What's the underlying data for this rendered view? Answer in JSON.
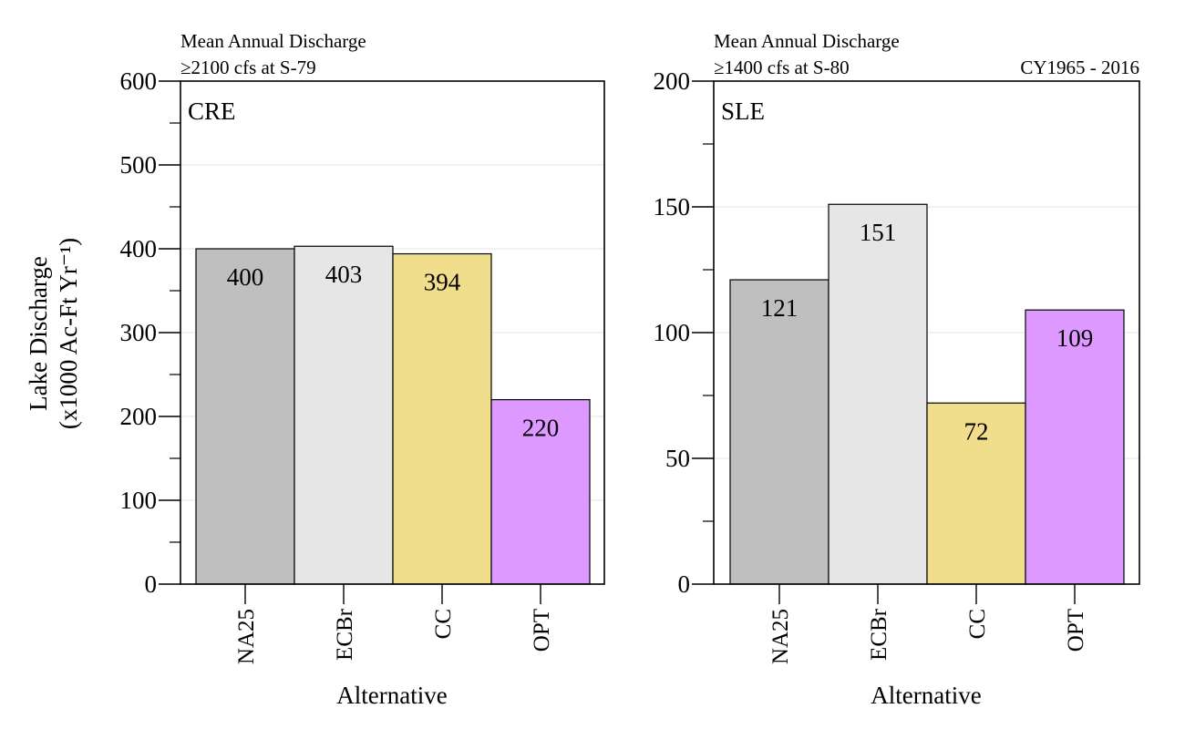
{
  "figure": {
    "ylabel_line1": "Lake Discharge",
    "ylabel_line2": "(x1000 Ac-Ft Yr⁻¹)",
    "period": "CY1965 - 2016"
  },
  "chart_data": [
    {
      "type": "bar",
      "panel": "CRE",
      "title": "Mean Annual Discharge",
      "subtitle": "≥2100 cfs at S-79",
      "xlabel": "Alternative",
      "ylabel": "Lake Discharge (x1000 Ac-Ft Yr⁻¹)",
      "categories": [
        "NA25",
        "ECBr",
        "CC",
        "OPT"
      ],
      "values": [
        400,
        403,
        394,
        220
      ],
      "colors": [
        "#bfbfbf",
        "#e6e6e6",
        "#f0de8c",
        "#dd99ff"
      ],
      "ylim": [
        0,
        600
      ],
      "yticks": [
        0,
        100,
        200,
        300,
        400,
        500,
        600
      ],
      "grid": true
    },
    {
      "type": "bar",
      "panel": "SLE",
      "title": "Mean Annual Discharge",
      "subtitle": "≥1400 cfs at S-80",
      "xlabel": "Alternative",
      "ylabel": "Lake Discharge (x1000 Ac-Ft Yr⁻¹)",
      "categories": [
        "NA25",
        "ECBr",
        "CC",
        "OPT"
      ],
      "values": [
        121,
        151,
        72,
        109
      ],
      "colors": [
        "#bfbfbf",
        "#e6e6e6",
        "#f0de8c",
        "#dd99ff"
      ],
      "ylim": [
        0,
        200
      ],
      "yticks": [
        0,
        50,
        100,
        150,
        200
      ],
      "grid": true
    }
  ]
}
